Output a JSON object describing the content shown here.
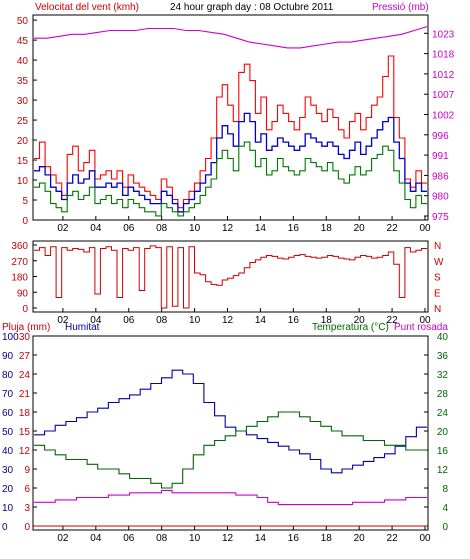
{
  "chart_data": [
    {
      "type": "line",
      "title": "24 hour graph day : 08 Octubre 2011",
      "left_label": "Velocitat del vent (kmh)",
      "right_label": "Pressió (mb)",
      "x_ticks": [
        "02",
        "04",
        "06",
        "08",
        "10",
        "12",
        "14",
        "16",
        "18",
        "20",
        "22",
        "00"
      ],
      "y_left_ticks": [
        "0",
        "5",
        "10",
        "15",
        "20",
        "25",
        "30",
        "35",
        "40",
        "45",
        "50"
      ],
      "y_right_ticks": [
        "975",
        "980",
        "986",
        "991",
        "996",
        "1002",
        "1007",
        "1012",
        "1018",
        "1023"
      ],
      "ylim_left": [
        0,
        50
      ],
      "ylim_right": [
        975,
        1028
      ],
      "series": [
        {
          "color": "#ff0000",
          "axis": "left",
          "values": [
            15,
            19,
            13,
            11,
            9,
            6,
            16,
            18,
            12,
            14,
            17,
            10,
            11,
            12,
            10,
            12,
            8,
            11,
            9,
            8,
            7,
            6,
            5,
            10,
            8,
            5,
            3,
            5,
            7,
            9,
            12,
            15,
            20,
            30,
            33,
            28,
            24,
            36,
            38,
            34,
            26,
            30,
            22,
            24,
            28,
            26,
            24,
            22,
            25,
            30,
            28,
            26,
            24,
            27,
            25,
            22,
            20,
            24,
            26,
            22,
            25,
            28,
            30,
            35,
            40,
            25,
            20,
            10,
            8,
            12,
            9
          ]
        },
        {
          "color": "#0000cc",
          "axis": "left",
          "values": [
            12,
            13,
            11,
            8,
            7,
            5,
            9,
            11,
            9,
            10,
            12,
            8,
            8,
            9,
            8,
            9,
            6,
            8,
            7,
            6,
            5,
            4,
            4,
            7,
            6,
            4,
            2,
            4,
            5,
            7,
            9,
            11,
            14,
            20,
            23,
            21,
            18,
            24,
            26,
            24,
            19,
            21,
            17,
            18,
            20,
            19,
            18,
            17,
            18,
            21,
            20,
            19,
            18,
            19,
            18,
            16,
            15,
            17,
            19,
            16,
            18,
            20,
            22,
            24,
            25,
            19,
            15,
            9,
            7,
            9,
            7
          ]
        },
        {
          "color": "#007700",
          "axis": "left",
          "values": [
            8,
            9,
            7,
            4,
            3,
            2,
            6,
            7,
            5,
            6,
            8,
            4,
            5,
            6,
            4,
            5,
            3,
            5,
            4,
            3,
            2,
            2,
            1,
            4,
            3,
            2,
            1,
            2,
            3,
            4,
            6,
            8,
            10,
            15,
            17,
            15,
            12,
            18,
            19,
            17,
            13,
            15,
            11,
            12,
            15,
            13,
            12,
            11,
            12,
            15,
            14,
            13,
            12,
            14,
            12,
            10,
            9,
            11,
            13,
            11,
            12,
            15,
            16,
            18,
            17,
            12,
            9,
            5,
            3,
            6,
            4
          ]
        },
        {
          "color": "#cc00cc",
          "axis": "right",
          "values": [
            1022,
            1022,
            1022.5,
            1023,
            1023,
            1023.5,
            1024,
            1024,
            1024,
            1024.5,
            1024.5,
            1024.5,
            1024,
            1024,
            1023.5,
            1023,
            1022,
            1021,
            1020.5,
            1020,
            1019.5,
            1019.5,
            1020,
            1020.5,
            1021,
            1021,
            1021.5,
            1022,
            1022.5,
            1023,
            1024,
            1025
          ]
        }
      ]
    },
    {
      "type": "line",
      "y_left_ticks": [
        "0",
        "90",
        "180",
        "270",
        "360"
      ],
      "y_right_ticks": [
        "N",
        "W",
        "S",
        "E",
        "N"
      ],
      "x_ticks": [
        "02",
        "04",
        "06",
        "08",
        "10",
        "12",
        "14",
        "16",
        "18",
        "20",
        "22",
        "00"
      ],
      "ylim_left": [
        0,
        360
      ],
      "series": [
        {
          "color": "#cc0000",
          "axis": "left",
          "values": [
            330,
            345,
            300,
            350,
            60,
            345,
            330,
            340,
            335,
            320,
            345,
            80,
            340,
            350,
            330,
            60,
            340,
            330,
            345,
            100,
            340,
            355,
            345,
            0,
            350,
            10,
            345,
            0,
            350,
            200,
            190,
            150,
            135,
            130,
            160,
            170,
            185,
            200,
            230,
            260,
            275,
            290,
            300,
            295,
            285,
            280,
            290,
            300,
            305,
            295,
            290,
            285,
            290,
            300,
            295,
            285,
            280,
            275,
            290,
            300,
            295,
            285,
            290,
            300,
            320,
            250,
            60,
            345,
            320,
            330,
            340
          ]
        }
      ]
    },
    {
      "type": "line",
      "left_label": "Pluja (mm)",
      "mid_label": "Humitat",
      "right_label": "Temperatura (°C)",
      "right_label2": "Punt rosada",
      "left_ticks_outer": [
        "0",
        "10",
        "20",
        "30",
        "40",
        "50",
        "60",
        "70",
        "80",
        "90",
        "100"
      ],
      "left_ticks_inner": [
        "0",
        "3",
        "6",
        "9",
        "12",
        "15",
        "18",
        "21",
        "24",
        "27",
        "30"
      ],
      "right_ticks": [
        "0",
        "4",
        "8",
        "12",
        "16",
        "20",
        "24",
        "28",
        "32",
        "36",
        "40"
      ],
      "x_ticks": [
        "02",
        "04",
        "06",
        "08",
        "10",
        "12",
        "14",
        "16",
        "18",
        "20",
        "22",
        "00"
      ],
      "ylim_humidity": [
        0,
        100
      ],
      "ylim_temp": [
        0,
        40
      ],
      "series": [
        {
          "name": "Humitat",
          "color": "#0000aa",
          "values": [
            48,
            50,
            53,
            55,
            57,
            60,
            62,
            65,
            67,
            69,
            72,
            75,
            78,
            82,
            80,
            75,
            65,
            58,
            52,
            50,
            48,
            46,
            44,
            42,
            40,
            38,
            35,
            30,
            28,
            30,
            32,
            34,
            36,
            38,
            42,
            47,
            52
          ]
        },
        {
          "name": "Temperatura (°C)",
          "color": "#006600",
          "values": [
            17,
            16,
            15,
            14,
            14,
            13,
            12,
            12,
            11,
            10,
            10,
            9,
            8,
            9,
            12,
            15,
            17,
            18,
            19,
            20,
            21,
            22,
            23,
            24,
            24,
            23,
            22,
            21,
            20,
            19,
            19,
            18,
            18,
            17,
            17,
            16,
            16
          ]
        },
        {
          "name": "Punt rosada",
          "color": "#cc00cc",
          "values": [
            5,
            5,
            5.5,
            5.5,
            6,
            6,
            6,
            6.5,
            6.5,
            7,
            7,
            7,
            7.5,
            7,
            7,
            7,
            7,
            7,
            7,
            6.5,
            6.5,
            6,
            5,
            4.5,
            4.5,
            4.5,
            4.5,
            4.5,
            4.5,
            4.5,
            5,
            5,
            5,
            5.5,
            5.5,
            6,
            6
          ]
        },
        {
          "name": "Pluja (mm)",
          "color": "#cc0000",
          "values": [
            0,
            0,
            0,
            0,
            0,
            0,
            0,
            0,
            0,
            0,
            0,
            0,
            0,
            0,
            0,
            0,
            0,
            0,
            0,
            0,
            0,
            0,
            0,
            0,
            0,
            0,
            0,
            0,
            0,
            0,
            0,
            0,
            0,
            0,
            0,
            0,
            0
          ]
        }
      ]
    }
  ]
}
